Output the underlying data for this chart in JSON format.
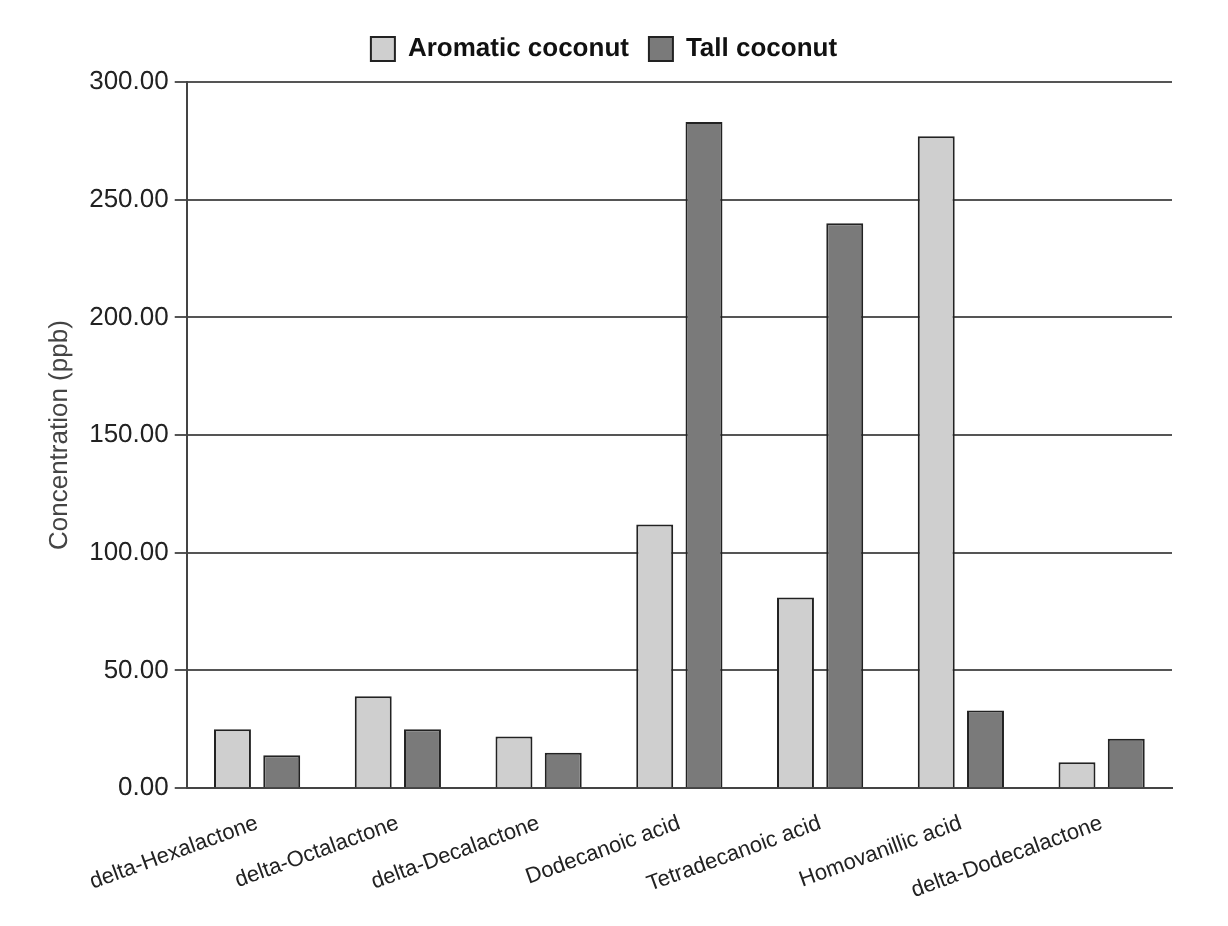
{
  "chart_data": {
    "type": "bar",
    "ylabel": "Concentration (ppb)",
    "categories": [
      "delta-Hexalactone",
      "delta-Octalactone",
      "delta-Decalactone",
      "Dodecanoic acid",
      "Tetradecanoic acid",
      "Homovanillic acid",
      "delta-Dodecalactone"
    ],
    "series": [
      {
        "name": "Aromatic coconut",
        "color": "#cfcfcf",
        "values": [
          25,
          39,
          22,
          112,
          81,
          277,
          11
        ]
      },
      {
        "name": "Tall coconut",
        "color": "#7a7a7a",
        "values": [
          14,
          25,
          15,
          283,
          240,
          33,
          21
        ]
      }
    ],
    "ylim": [
      0,
      300
    ],
    "yticks": [
      {
        "value": 0,
        "label": "0.00"
      },
      {
        "value": 50,
        "label": "50.00"
      },
      {
        "value": 100,
        "label": "100.00"
      },
      {
        "value": 150,
        "label": "150.00"
      },
      {
        "value": 200,
        "label": "200.00"
      },
      {
        "value": 250,
        "label": "250.00"
      },
      {
        "value": 300,
        "label": "300.00"
      }
    ],
    "grid": "y",
    "legend": "top"
  }
}
